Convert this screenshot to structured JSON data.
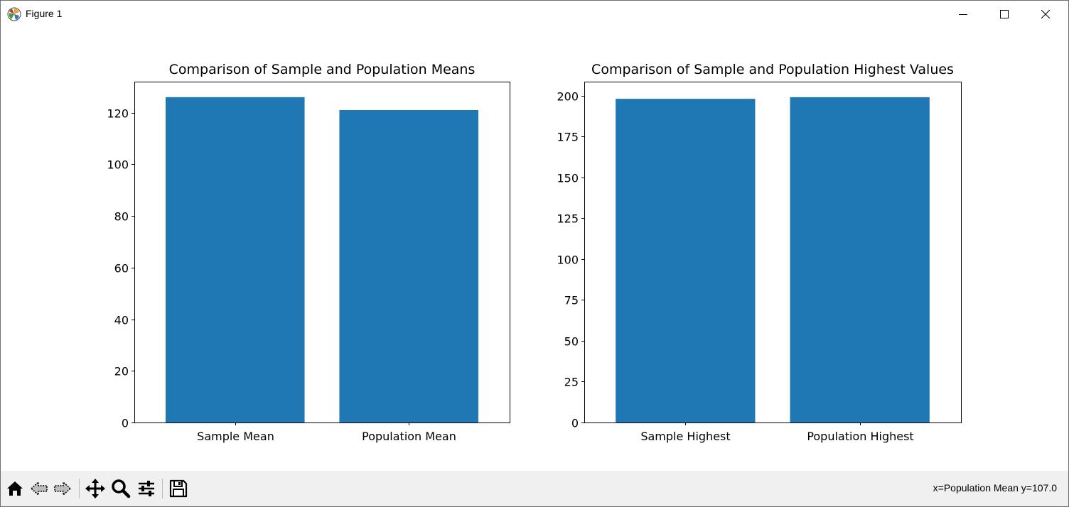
{
  "window": {
    "title": "Figure 1",
    "icon": "matplotlib-icon",
    "controls": [
      "minimize-icon",
      "maximize-icon",
      "close-icon"
    ]
  },
  "colors": {
    "bar": "#1f77b4",
    "axes": "#000000",
    "toolbar_bg": "#f0f0f0"
  },
  "chart_data": [
    {
      "type": "bar",
      "title": "Comparison of Sample and Population Means",
      "categories": [
        "Sample Mean",
        "Population Mean"
      ],
      "values": [
        126,
        121
      ],
      "ylim": [
        0,
        132
      ],
      "yticks": [
        0,
        20,
        40,
        60,
        80,
        100,
        120
      ],
      "xlabel": "",
      "ylabel": "",
      "grid": false
    },
    {
      "type": "bar",
      "title": "Comparison of Sample and Population Highest Values",
      "categories": [
        "Sample Highest",
        "Population Highest"
      ],
      "values": [
        198,
        199
      ],
      "ylim": [
        0,
        208.5
      ],
      "yticks": [
        0,
        25,
        50,
        75,
        100,
        125,
        150,
        175,
        200
      ],
      "xlabel": "",
      "ylabel": "",
      "grid": false
    }
  ],
  "toolbar": {
    "tools": [
      {
        "name": "home-icon",
        "label": "Home"
      },
      {
        "name": "back-icon",
        "label": "Back"
      },
      {
        "name": "forward-icon",
        "label": "Forward"
      },
      {
        "name": "pan-icon",
        "label": "Pan"
      },
      {
        "name": "zoom-icon",
        "label": "Zoom"
      },
      {
        "name": "configure-subplots-icon",
        "label": "Configure subplots"
      },
      {
        "name": "save-icon",
        "label": "Save"
      }
    ],
    "coordinates": "x=Population Mean y=107.0"
  }
}
